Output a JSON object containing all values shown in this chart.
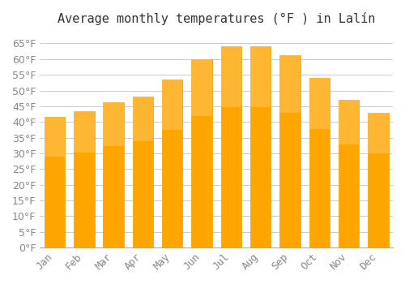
{
  "title": "Average monthly temperatures (°F ) in Lalín",
  "months": [
    "Jan",
    "Feb",
    "Mar",
    "Apr",
    "May",
    "Jun",
    "Jul",
    "Aug",
    "Sep",
    "Oct",
    "Nov",
    "Dec"
  ],
  "values": [
    41.5,
    43.3,
    46.2,
    48.2,
    53.4,
    59.9,
    64.0,
    64.0,
    61.3,
    54.0,
    47.0,
    43.0
  ],
  "bar_color": "#FFA500",
  "bar_edge_color": "#E8A000",
  "background_color": "#FFFFFF",
  "plot_background_color": "#FFFFFF",
  "grid_color": "#CCCCCC",
  "ylim": [
    0,
    68
  ],
  "ytick_step": 5,
  "title_fontsize": 11,
  "tick_fontsize": 9,
  "tick_color": "#888888",
  "font_family": "monospace"
}
